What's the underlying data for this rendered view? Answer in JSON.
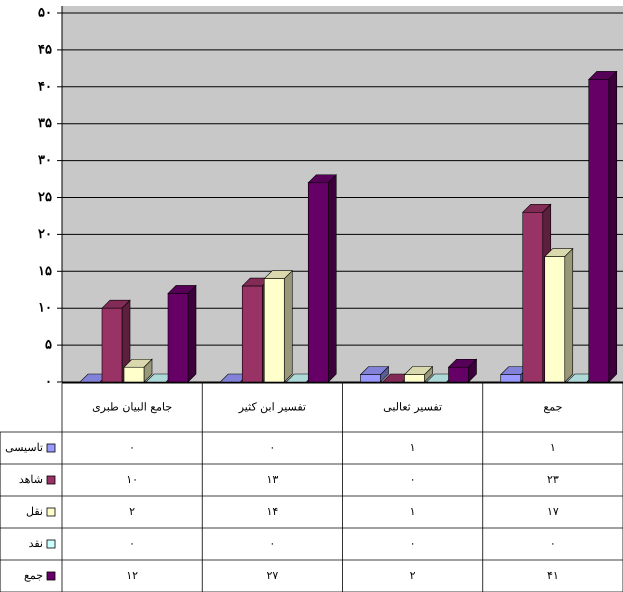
{
  "chart_data": {
    "type": "bar3d",
    "categories": [
      "جامع البیان طبری",
      "تفسیر ابن کثیر",
      "تفسیر ثعالبی",
      "جمع"
    ],
    "series": [
      {
        "name": "تاسیسی",
        "color": "#9999ff",
        "values": [
          0,
          0,
          1,
          1
        ],
        "value_labels": [
          "۰",
          "۰",
          "۱",
          "۱"
        ]
      },
      {
        "name": "شاهد",
        "color": "#993366",
        "values": [
          10,
          13,
          0,
          23
        ],
        "value_labels": [
          "۱۰",
          "۱۳",
          "۰",
          "۲۳"
        ]
      },
      {
        "name": "نقل",
        "color": "#ffffcc",
        "values": [
          2,
          14,
          1,
          17
        ],
        "value_labels": [
          "۲",
          "۱۴",
          "۱",
          "۱۷"
        ]
      },
      {
        "name": "نقد",
        "color": "#ccffff",
        "values": [
          0,
          0,
          0,
          0
        ],
        "value_labels": [
          "۰",
          "۰",
          "۰",
          "۰"
        ]
      },
      {
        "name": "جمع",
        "color": "#660066",
        "values": [
          12,
          27,
          2,
          41
        ],
        "value_labels": [
          "۱۲",
          "۲۷",
          "۲",
          "۴۱"
        ]
      }
    ],
    "ylim": [
      0,
      50
    ],
    "yticks": [
      {
        "value": 0,
        "label": "۰"
      },
      {
        "value": 5,
        "label": "۵"
      },
      {
        "value": 10,
        "label": "۱۰"
      },
      {
        "value": 15,
        "label": "۱۵"
      },
      {
        "value": 20,
        "label": "۲۰"
      },
      {
        "value": 25,
        "label": "۲۵"
      },
      {
        "value": 30,
        "label": "۳۰"
      },
      {
        "value": 35,
        "label": "۳۵"
      },
      {
        "value": 40,
        "label": "۴۰"
      },
      {
        "value": 45,
        "label": "۴۵"
      },
      {
        "value": 50,
        "label": "۵۰"
      }
    ],
    "grid": true
  }
}
